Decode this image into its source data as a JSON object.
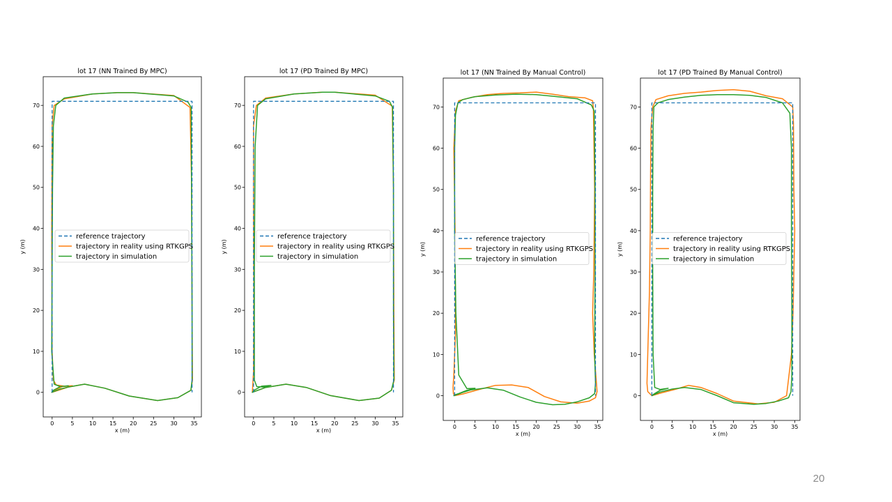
{
  "slide": {
    "page_number": "20"
  },
  "legend_labels": [
    "reference trajectory",
    "trajectory in reality using RTKGPS",
    "trajectory in simulation"
  ],
  "colors": {
    "reference": "#1f77b4",
    "reality": "#ff7f0e",
    "simulation": "#2ca02c"
  },
  "chart_data": [
    {
      "type": "line",
      "title": "lot 17 (NN Trained By MPC)",
      "xlabel": "x (m)",
      "ylabel": "y (m)",
      "xlim": [
        -2.2,
        36.8
      ],
      "ylim": [
        -6,
        77
      ],
      "xticks": [
        0,
        5,
        10,
        15,
        20,
        25,
        30,
        35
      ],
      "yticks": [
        0,
        10,
        20,
        30,
        40,
        50,
        60,
        70
      ],
      "grid": false,
      "legend_position": "center",
      "series": [
        {
          "name": "reference trajectory",
          "style": "dashed",
          "x": [
            0,
            0,
            0,
            34.5,
            34.5,
            34.5
          ],
          "y": [
            0,
            50,
            71,
            71,
            50,
            0
          ]
        },
        {
          "name": "trajectory in reality using RTKGPS",
          "x": [
            0,
            4,
            8,
            13,
            19,
            26,
            31,
            34.2,
            34.6,
            34.5,
            34.4,
            34.0,
            30,
            20,
            16,
            10,
            3,
            0.5,
            0,
            -0.1,
            0,
            0.3,
            1,
            3,
            5,
            2.5,
            0.6,
            0
          ],
          "y": [
            0,
            1.3,
            2.0,
            1.0,
            -0.9,
            -2.0,
            -1.3,
            0.5,
            3,
            20,
            50,
            69.5,
            72.4,
            73.1,
            73.1,
            72.8,
            71.6,
            70,
            65,
            40,
            10,
            3,
            1.8,
            1.5,
            1.6,
            1.4,
            0.5,
            0
          ]
        },
        {
          "name": "trajectory in simulation",
          "x": [
            -0.1,
            2,
            4,
            8,
            13,
            19,
            26,
            31,
            34.2,
            34.5,
            34.5,
            34.3,
            33.5,
            30,
            20,
            16,
            10,
            3,
            0.9,
            0.3,
            0.1,
            0,
            -0.1,
            0.5,
            2,
            4,
            2,
            0.3,
            -0.1
          ],
          "y": [
            0,
            0.8,
            1.3,
            2.0,
            1.0,
            -0.9,
            -2.0,
            -1.3,
            0.5,
            3,
            20,
            69.5,
            70.8,
            72.3,
            73.1,
            73.1,
            72.8,
            71.8,
            70,
            65,
            50,
            30,
            10,
            2,
            1.4,
            1.6,
            1.4,
            0.5,
            0
          ]
        }
      ]
    },
    {
      "type": "line",
      "title": "lot 17 (PD Trained By MPC)",
      "xlabel": "x (m)",
      "ylabel": "y (m)",
      "xlim": [
        -2.2,
        36.8
      ],
      "ylim": [
        -6,
        77
      ],
      "xticks": [
        0,
        5,
        10,
        15,
        20,
        25,
        30,
        35
      ],
      "yticks": [
        0,
        10,
        20,
        30,
        40,
        50,
        60,
        70
      ],
      "grid": false,
      "legend_position": "center",
      "series": [
        {
          "name": "reference trajectory",
          "style": "dashed",
          "x": [
            0,
            0,
            0,
            34.5,
            34.5,
            34.5
          ],
          "y": [
            0,
            50,
            71,
            71,
            50,
            0
          ]
        },
        {
          "name": "trajectory in reality using RTKGPS",
          "x": [
            -0.3,
            3,
            8,
            13,
            19,
            26,
            31,
            34,
            34.7,
            34.6,
            34.5,
            34.2,
            30,
            20,
            17,
            10,
            3,
            0.7,
            0,
            0,
            0.1,
            0,
            -0.3
          ],
          "y": [
            0,
            1.2,
            2.0,
            1.2,
            -0.8,
            -2.0,
            -1.4,
            0.5,
            3,
            20,
            50,
            69.8,
            72.5,
            73.2,
            73.2,
            72.8,
            71.8,
            70,
            65,
            44,
            20,
            5,
            0
          ]
        },
        {
          "name": "trajectory in simulation",
          "x": [
            -0.3,
            3,
            8,
            13,
            19,
            26,
            31,
            34,
            34.6,
            34.5,
            34.5,
            34.3,
            33.5,
            30,
            20,
            17,
            10,
            3,
            1.0,
            0.4,
            0.2,
            0.2,
            0.8,
            2.5,
            4.3,
            2,
            0.3,
            -0.3
          ],
          "y": [
            0,
            1.2,
            2.0,
            1.2,
            -0.8,
            -2.0,
            -1.4,
            0.5,
            3,
            20,
            50,
            69.5,
            71,
            72.3,
            73.2,
            73.2,
            72.8,
            71.6,
            70,
            60,
            30,
            3,
            1.4,
            1.3,
            1.7,
            1.5,
            0.6,
            0
          ]
        }
      ]
    },
    {
      "type": "line",
      "title": "lot 17 (NN Trained By Manual Control)",
      "xlabel": "x (m)",
      "ylabel": "y (m)",
      "xlim": [
        -2.8,
        36.3
      ],
      "ylim": [
        -6,
        77
      ],
      "xticks": [
        0,
        5,
        10,
        15,
        20,
        25,
        30,
        35
      ],
      "yticks": [
        0,
        10,
        20,
        30,
        40,
        50,
        60,
        70
      ],
      "grid": false,
      "legend_position": "center",
      "series": [
        {
          "name": "reference trajectory",
          "style": "dashed",
          "x": [
            0,
            0,
            0,
            34.5,
            34.5,
            34.5
          ],
          "y": [
            0,
            50,
            71,
            71,
            50,
            0
          ]
        },
        {
          "name": "trajectory in reality using RTKGPS",
          "x": [
            -0.4,
            -0.2,
            0.2,
            0.1,
            -0.2,
            0.2,
            1,
            4,
            8,
            12,
            16,
            20,
            24,
            28,
            32,
            33.8,
            34.0,
            34.3,
            34.1,
            33.8,
            34.2,
            34.6,
            34.9,
            34.5,
            33,
            30,
            26,
            22,
            18,
            14,
            10,
            6,
            2,
            0,
            -0.3,
            -0.4
          ],
          "y": [
            2,
            5,
            15,
            40,
            60,
            69,
            71.5,
            72.3,
            73,
            73.3,
            73.4,
            73.6,
            73.1,
            72.5,
            72.2,
            71.5,
            69.5,
            50,
            30,
            20,
            10,
            5,
            1,
            -0.5,
            -1.3,
            -1.8,
            -1.5,
            -0.2,
            2,
            2.6,
            2.5,
            1.5,
            0.4,
            0,
            0.5,
            2
          ]
        },
        {
          "name": "trajectory in simulation",
          "x": [
            -0.2,
            2,
            4,
            8,
            12,
            16,
            20,
            24,
            27,
            30,
            33,
            34.3,
            34.5,
            34.3,
            34.4,
            34.4,
            34.2,
            33.5,
            30,
            24,
            20,
            15,
            10,
            5,
            2,
            0.8,
            0.2,
            0,
            0,
            0.3,
            1,
            3,
            5,
            3,
            1,
            0,
            -0.2
          ],
          "y": [
            0,
            0.8,
            1.4,
            1.9,
            1.3,
            -0.3,
            -1.6,
            -2.2,
            -2.1,
            -1.5,
            -0.5,
            0.5,
            3,
            10,
            30,
            50,
            69,
            70.5,
            72,
            72.6,
            73,
            73.1,
            72.9,
            72.5,
            71.8,
            71,
            68,
            60,
            40,
            20,
            5,
            1.7,
            1.8,
            1.3,
            0.5,
            0.2,
            0
          ]
        }
      ]
    },
    {
      "type": "line",
      "title": "lot 17 (PD Trained By Manual Control)",
      "xlabel": "x (m)",
      "ylabel": "y (m)",
      "xlim": [
        -2.8,
        36.3
      ],
      "ylim": [
        -6,
        77
      ],
      "xticks": [
        0,
        5,
        10,
        15,
        20,
        25,
        30,
        35
      ],
      "yticks": [
        0,
        10,
        20,
        30,
        40,
        50,
        60,
        70
      ],
      "grid": false,
      "legend_position": "center",
      "series": [
        {
          "name": "reference trajectory",
          "style": "dashed",
          "x": [
            0,
            0,
            0,
            34.5,
            34.5,
            34.5
          ],
          "y": [
            0,
            50,
            71,
            71,
            50,
            0
          ]
        },
        {
          "name": "trajectory in reality using RTKGPS",
          "x": [
            -1.2,
            -1.0,
            -0.6,
            -0.4,
            -0.3,
            -0.2,
            0.2,
            1,
            4,
            8,
            12,
            16,
            20,
            24,
            28,
            32,
            34.5,
            34.7,
            34.8,
            35.0,
            34.8,
            34.6,
            34.2,
            33,
            30,
            26,
            20,
            16,
            12,
            9,
            6,
            2,
            0,
            -1.0,
            -1.2
          ],
          "y": [
            3,
            10,
            25,
            40,
            55,
            65,
            70,
            71.8,
            72.7,
            73.3,
            73.6,
            74,
            74.2,
            73.8,
            72.7,
            72,
            70,
            66,
            50,
            40,
            30,
            20,
            10,
            0,
            -1.6,
            -2,
            -1.3,
            0.5,
            2,
            2.5,
            1.6,
            0.6,
            0,
            1,
            3
          ]
        },
        {
          "name": "trajectory in simulation",
          "x": [
            0,
            2,
            5,
            8,
            12,
            16,
            20,
            25,
            28,
            31,
            33.5,
            34.1,
            34.3,
            34.3,
            34.2,
            34.2,
            33.8,
            32,
            28,
            24,
            20,
            16,
            12,
            8,
            4,
            1.5,
            0.5,
            0.3,
            0.2,
            0.2,
            0.3,
            0.7,
            2,
            4,
            2,
            0.5,
            0
          ],
          "y": [
            0,
            0.9,
            1.6,
            2.0,
            1.5,
            0,
            -1.7,
            -2.1,
            -1.9,
            -1.3,
            -0.5,
            1,
            5,
            20,
            40,
            60,
            68.5,
            71,
            72.3,
            72.8,
            73,
            73,
            72.8,
            72.4,
            71.8,
            71,
            70,
            65,
            50,
            30,
            10,
            2,
            1.5,
            1.8,
            1.3,
            0.4,
            0
          ]
        }
      ]
    }
  ]
}
